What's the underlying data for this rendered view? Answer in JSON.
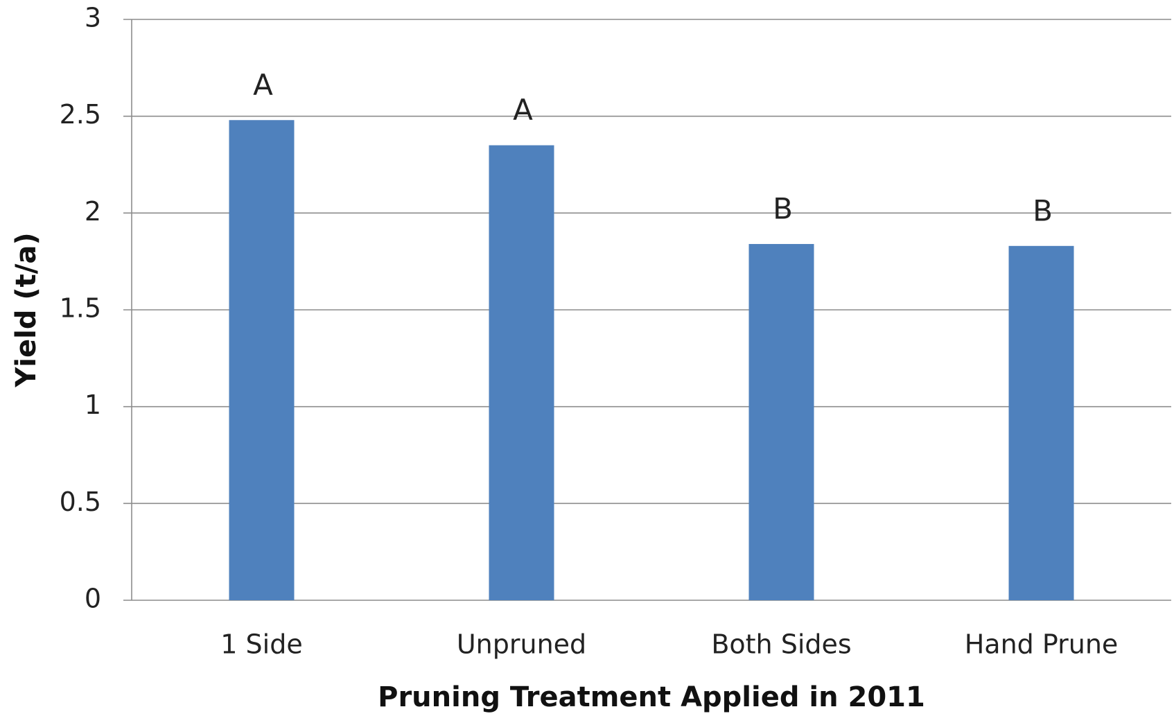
{
  "chart_data": {
    "type": "bar",
    "x_label": "Pruning Treatment Applied in 2011",
    "y_label": "Yield (t/a)",
    "categories": [
      "1 Side",
      "Unpruned",
      "Both Sides",
      "Hand Prune"
    ],
    "values": [
      2.48,
      2.35,
      1.84,
      1.83
    ],
    "annotations": [
      "A",
      "A",
      "B",
      "B"
    ],
    "color": "#4f81bd",
    "ylim": [
      0,
      3
    ],
    "yticks": [
      0,
      0.5,
      1,
      1.5,
      2,
      2.5,
      3
    ],
    "grid": true
  }
}
